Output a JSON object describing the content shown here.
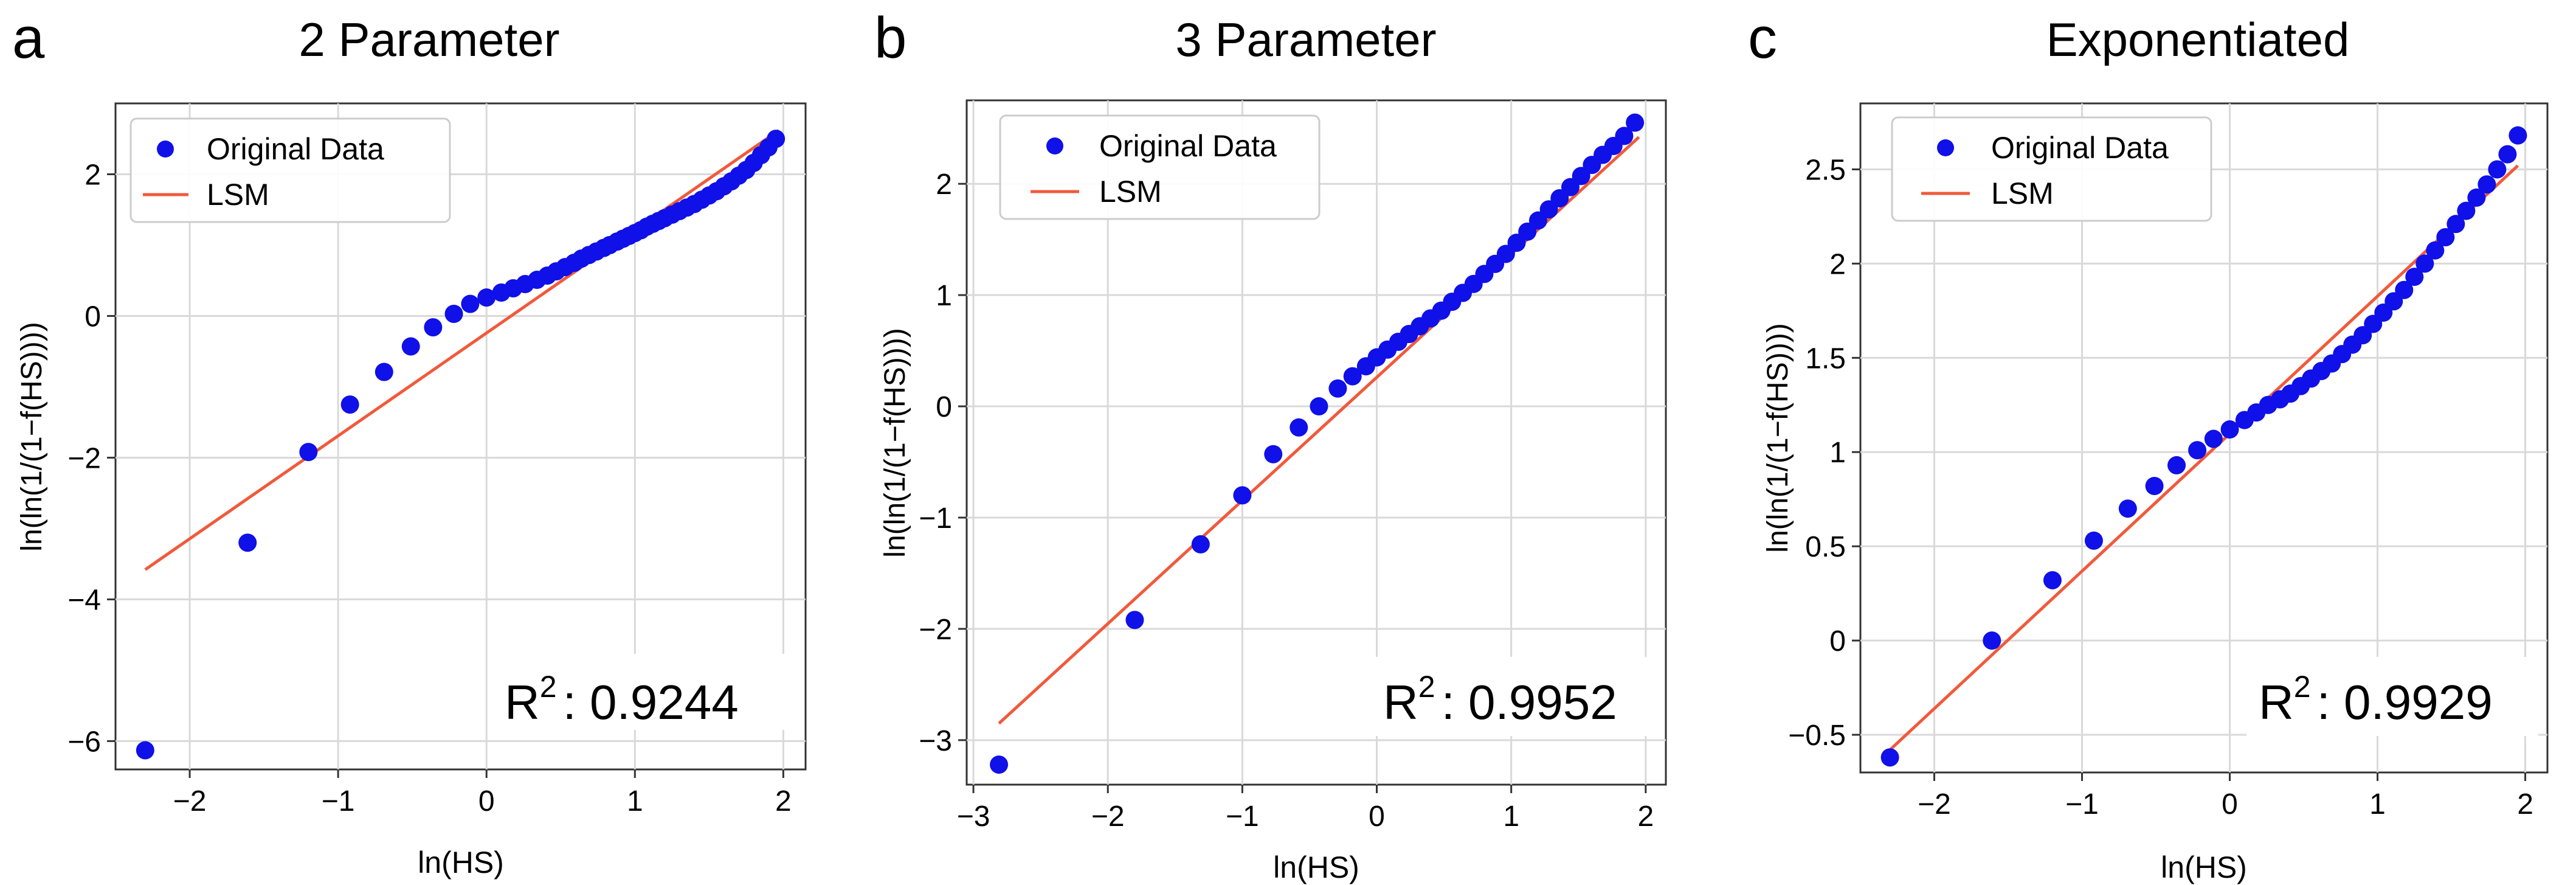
{
  "figure": {
    "panels": [
      {
        "letter": "a",
        "title": "2 Parameter",
        "r2_label": "R",
        "r2_sup": "2",
        "r2_value": ": 0.9244"
      },
      {
        "letter": "b",
        "title": "3 Parameter",
        "r2_label": "R",
        "r2_sup": "2",
        "r2_value": ": 0.9952"
      },
      {
        "letter": "c",
        "title": "Exponentiated",
        "r2_label": "R",
        "r2_sup": "2",
        "r2_value": ": 0.9929"
      }
    ],
    "legend": {
      "data_label": "Original Data",
      "fit_label": "LSM"
    },
    "xlabel": "ln(HS)",
    "ylabel": "ln(ln(1/(1−f(HS))))"
  },
  "colors": {
    "points": "#1010e8",
    "fit_line": "#f05a3c",
    "grid": "#d9d9d9",
    "axes": "#333333"
  },
  "chart_data": [
    {
      "type": "scatter",
      "title": "2 Parameter",
      "xlabel": "ln(HS)",
      "ylabel": "ln(ln(1/(1−f(HS))))",
      "xlim": [
        -2.5,
        2.15
      ],
      "ylim": [
        -6.4,
        3.0
      ],
      "xticks": [
        -2,
        -1,
        0,
        1,
        2
      ],
      "yticks": [
        -6,
        -4,
        -2,
        0,
        2
      ],
      "grid": true,
      "legend_position": "top-left",
      "r2": 0.9244,
      "series": [
        {
          "name": "Original Data",
          "kind": "points",
          "x": [
            -2.3,
            -1.61,
            -1.2,
            -0.92,
            -0.69,
            -0.51,
            -0.36,
            -0.22,
            -0.11,
            0.0,
            0.1,
            0.18,
            0.26,
            0.34,
            0.41,
            0.47,
            0.53,
            0.59,
            0.64,
            0.69,
            0.74,
            0.79,
            0.83,
            0.88,
            0.92,
            0.96,
            1.0,
            1.04,
            1.08,
            1.12,
            1.16,
            1.2,
            1.25,
            1.3,
            1.35,
            1.4,
            1.45,
            1.5,
            1.55,
            1.6,
            1.65,
            1.7,
            1.75,
            1.8,
            1.85,
            1.9,
            1.95
          ],
          "y": [
            -6.13,
            -3.2,
            -1.92,
            -1.25,
            -0.79,
            -0.43,
            -0.16,
            0.03,
            0.17,
            0.26,
            0.33,
            0.39,
            0.45,
            0.51,
            0.57,
            0.63,
            0.69,
            0.75,
            0.81,
            0.86,
            0.91,
            0.96,
            1.0,
            1.05,
            1.09,
            1.13,
            1.17,
            1.21,
            1.26,
            1.3,
            1.34,
            1.38,
            1.43,
            1.48,
            1.53,
            1.58,
            1.64,
            1.7,
            1.76,
            1.83,
            1.9,
            1.98,
            2.06,
            2.16,
            2.27,
            2.38,
            2.5
          ]
        },
        {
          "name": "LSM",
          "kind": "line",
          "x": [
            -2.3,
            1.97
          ],
          "y": [
            -3.58,
            2.62
          ]
        }
      ]
    },
    {
      "type": "scatter",
      "title": "3 Parameter",
      "xlabel": "ln(HS)",
      "ylabel": "ln(ln(1/(1−f(HS))))",
      "xlim": [
        -3.05,
        2.15
      ],
      "ylim": [
        -3.4,
        2.75
      ],
      "xticks": [
        -3,
        -2,
        -1,
        0,
        1,
        2
      ],
      "yticks": [
        -3,
        -2,
        -1,
        0,
        1,
        2
      ],
      "grid": true,
      "legend_position": "top-left",
      "r2": 0.9952,
      "series": [
        {
          "name": "Original Data",
          "kind": "points",
          "x": [
            -2.81,
            -1.8,
            -1.31,
            -1.0,
            -0.77,
            -0.58,
            -0.43,
            -0.29,
            -0.18,
            -0.08,
            0.0,
            0.08,
            0.16,
            0.24,
            0.32,
            0.4,
            0.48,
            0.56,
            0.64,
            0.72,
            0.8,
            0.88,
            0.96,
            1.04,
            1.12,
            1.2,
            1.28,
            1.36,
            1.44,
            1.52,
            1.6,
            1.68,
            1.76,
            1.84,
            1.92
          ],
          "y": [
            -3.22,
            -1.92,
            -1.24,
            -0.8,
            -0.43,
            -0.19,
            0.0,
            0.16,
            0.27,
            0.36,
            0.44,
            0.51,
            0.58,
            0.65,
            0.72,
            0.79,
            0.86,
            0.94,
            1.02,
            1.1,
            1.19,
            1.28,
            1.37,
            1.47,
            1.57,
            1.67,
            1.77,
            1.87,
            1.97,
            2.07,
            2.17,
            2.26,
            2.34,
            2.43,
            2.55
          ]
        },
        {
          "name": "LSM",
          "kind": "line",
          "x": [
            -2.81,
            1.95
          ],
          "y": [
            -2.85,
            2.42
          ]
        }
      ]
    },
    {
      "type": "scatter",
      "title": "Exponentiated",
      "xlabel": "ln(HS)",
      "ylabel": "ln(ln(1/(1−f(HS))))",
      "xlim": [
        -2.5,
        2.15
      ],
      "ylim": [
        -0.7,
        2.85
      ],
      "xticks": [
        -2,
        -1,
        0,
        1,
        2
      ],
      "yticks": [
        -0.5,
        0.0,
        0.5,
        1.0,
        1.5,
        2.0,
        2.5
      ],
      "grid": true,
      "legend_position": "top-left",
      "r2": 0.9929,
      "series": [
        {
          "name": "Original Data",
          "kind": "points",
          "x": [
            -2.3,
            -1.61,
            -1.2,
            -0.92,
            -0.69,
            -0.51,
            -0.36,
            -0.22,
            -0.11,
            0.0,
            0.1,
            0.18,
            0.26,
            0.34,
            0.41,
            0.48,
            0.55,
            0.62,
            0.69,
            0.76,
            0.83,
            0.9,
            0.97,
            1.04,
            1.11,
            1.18,
            1.25,
            1.32,
            1.39,
            1.46,
            1.53,
            1.6,
            1.67,
            1.74,
            1.81,
            1.88,
            1.95
          ],
          "y": [
            -0.62,
            0.0,
            0.32,
            0.53,
            0.7,
            0.82,
            0.93,
            1.01,
            1.07,
            1.12,
            1.17,
            1.21,
            1.25,
            1.28,
            1.31,
            1.35,
            1.39,
            1.43,
            1.47,
            1.52,
            1.57,
            1.62,
            1.68,
            1.74,
            1.8,
            1.86,
            1.93,
            2.0,
            2.07,
            2.14,
            2.21,
            2.28,
            2.35,
            2.42,
            2.5,
            2.58,
            2.68
          ]
        },
        {
          "name": "LSM",
          "kind": "line",
          "x": [
            -2.3,
            1.95
          ],
          "y": [
            -0.58,
            2.52
          ]
        }
      ]
    }
  ]
}
